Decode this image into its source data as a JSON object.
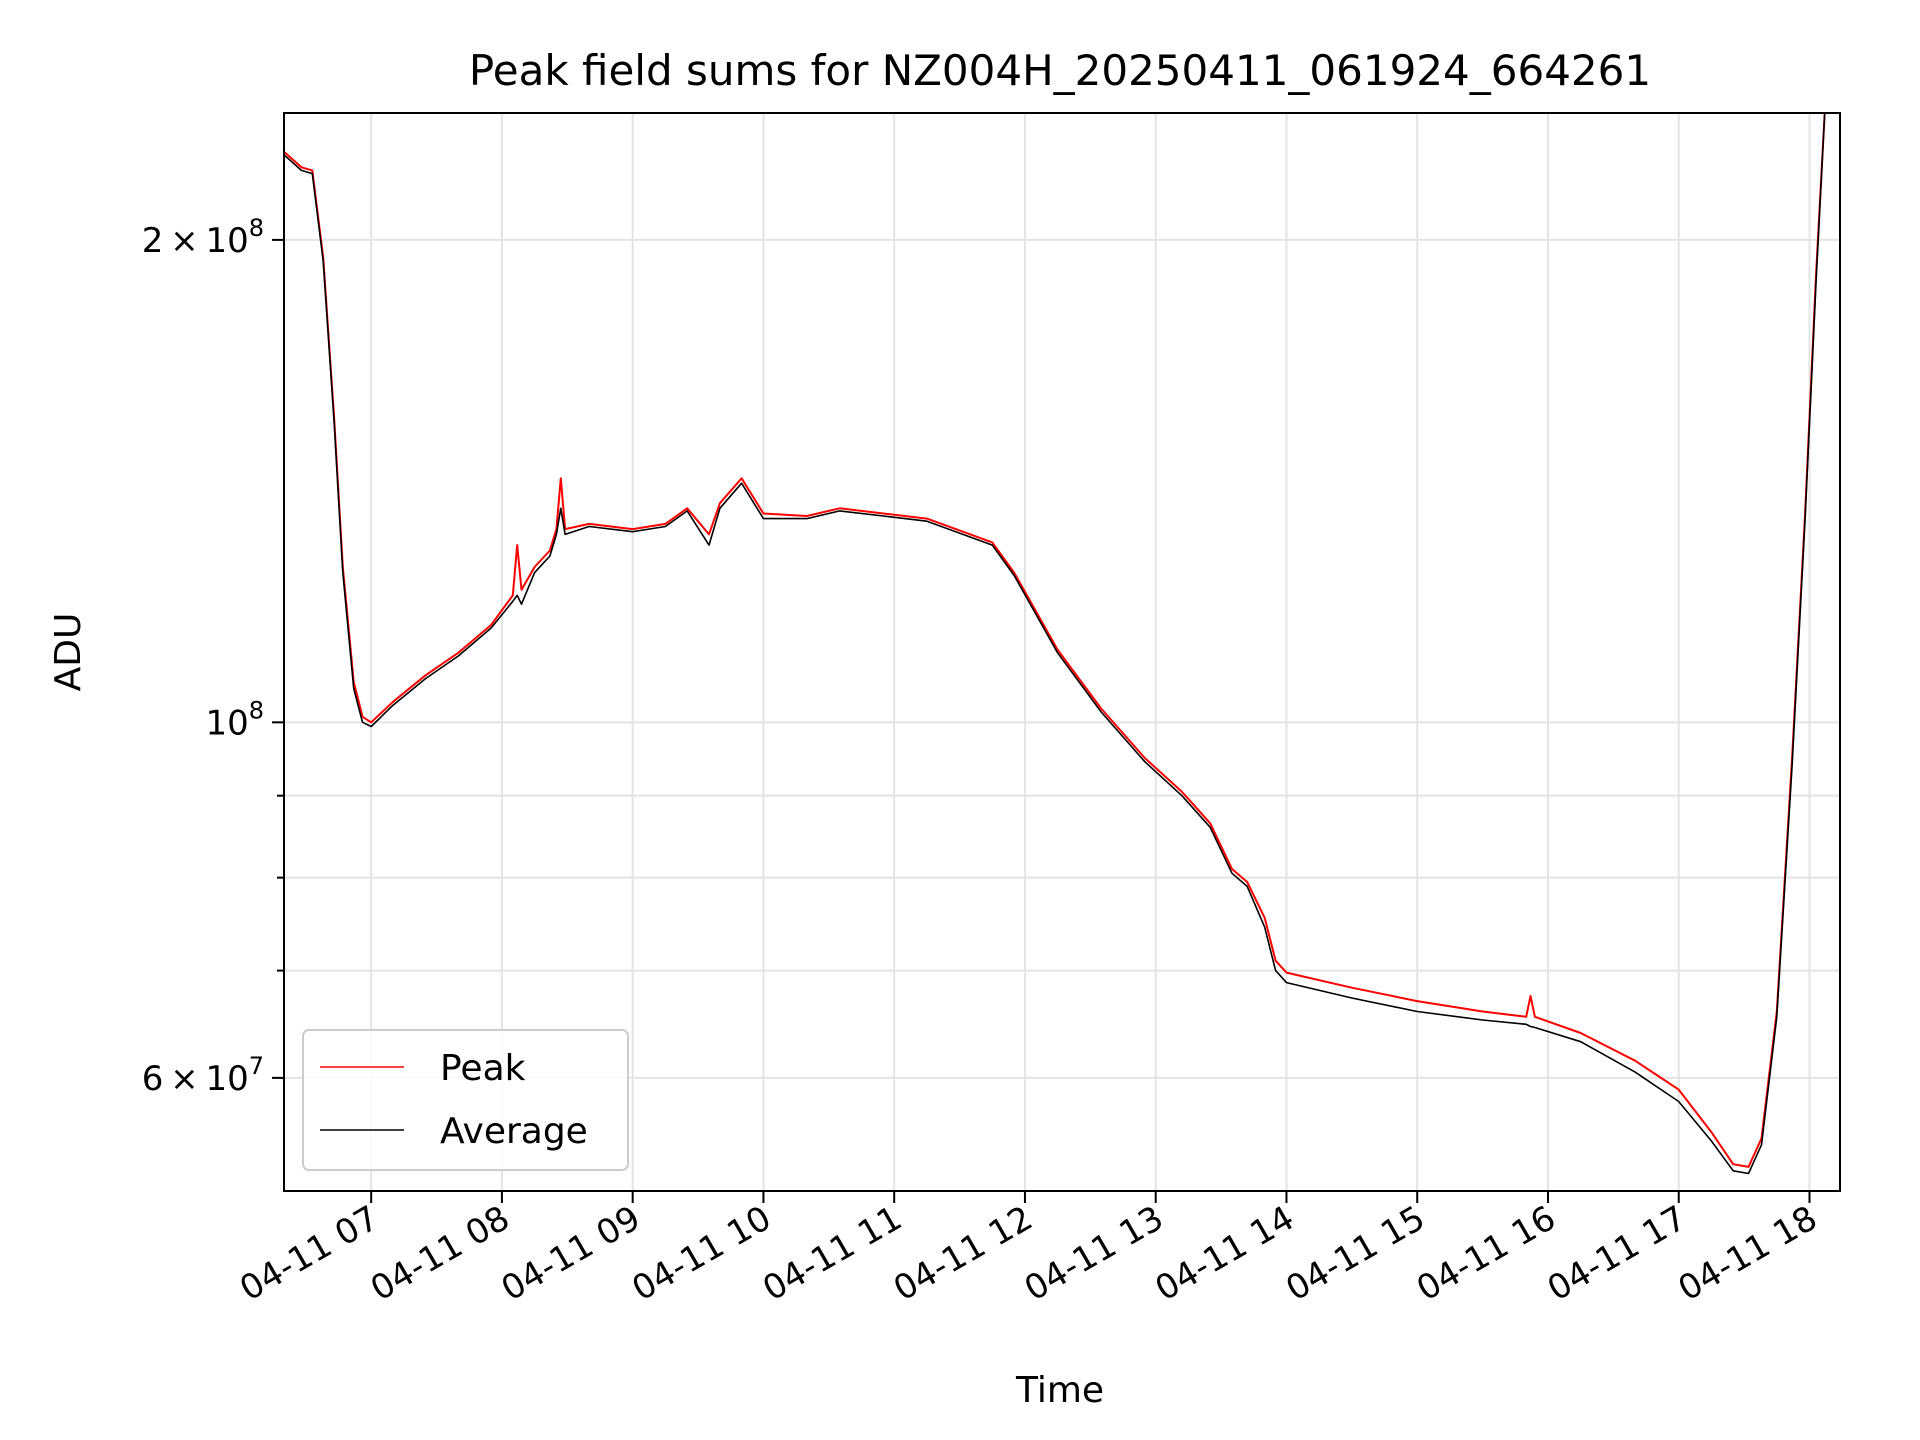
{
  "chart_data": {
    "type": "line",
    "title": "Peak field sums for NZ004H_20250411_061924_664261",
    "xlabel": "Time",
    "ylabel": "ADU",
    "xlim": [
      "04-11 06:20",
      "04-11 18:14"
    ],
    "ylim": [
      51000000,
      240000000
    ],
    "yscale": "log",
    "grid": true,
    "legend_position": "lower-left",
    "x_ticks": [
      "04-11 07",
      "04-11 08",
      "04-11 09",
      "04-11 10",
      "04-11 11",
      "04-11 12",
      "04-11 13",
      "04-11 14",
      "04-11 15",
      "04-11 16",
      "04-11 17",
      "04-11 18"
    ],
    "y_ticks": [
      {
        "value": 200000000,
        "label": "2 × 10⁸",
        "mantissa": "2",
        "exponent": "8"
      },
      {
        "value": 100000000,
        "label": "10⁸",
        "mantissa": "",
        "exponent": "8"
      },
      {
        "value": 60000000,
        "label": "6 × 10⁷",
        "mantissa": "6",
        "exponent": "7"
      }
    ],
    "y_minor_ticks": [
      70000000,
      80000000,
      90000000
    ],
    "series": [
      {
        "name": "Peak",
        "color": "#ff0000",
        "points": [
          [
            "04-11 06:20",
            227000000.0
          ],
          [
            "04-11 06:28",
            222000000.0
          ],
          [
            "04-11 06:33",
            221000000.0
          ],
          [
            "04-11 06:38",
            195000000.0
          ],
          [
            "04-11 06:43",
            155000000.0
          ],
          [
            "04-11 06:47",
            125000000.0
          ],
          [
            "04-11 06:52",
            106000000.0
          ],
          [
            "04-11 06:56",
            100800000.0
          ],
          [
            "04-11 07:00",
            100000000.0
          ],
          [
            "04-11 07:10",
            103000000.0
          ],
          [
            "04-11 07:25",
            107000000.0
          ],
          [
            "04-11 07:40",
            110500000.0
          ],
          [
            "04-11 07:55",
            115000000.0
          ],
          [
            "04-11 08:05",
            120000000.0
          ],
          [
            "04-11 08:07",
            129000000.0
          ],
          [
            "04-11 08:09",
            121000000.0
          ],
          [
            "04-11 08:15",
            125000000.0
          ],
          [
            "04-11 08:22",
            128000000.0
          ],
          [
            "04-11 08:25",
            132000000.0
          ],
          [
            "04-11 08:27",
            142000000.0
          ],
          [
            "04-11 08:29",
            132000000.0
          ],
          [
            "04-11 08:40",
            133000000.0
          ],
          [
            "04-11 09:00",
            132000000.0
          ],
          [
            "04-11 09:15",
            133000000.0
          ],
          [
            "04-11 09:25",
            136000000.0
          ],
          [
            "04-11 09:35",
            131000000.0
          ],
          [
            "04-11 09:40",
            137000000.0
          ],
          [
            "04-11 09:50",
            142000000.0
          ],
          [
            "04-11 10:00",
            135000000.0
          ],
          [
            "04-11 10:20",
            134500000.0
          ],
          [
            "04-11 10:35",
            136000000.0
          ],
          [
            "04-11 10:55",
            135000000.0
          ],
          [
            "04-11 11:15",
            134000000.0
          ],
          [
            "04-11 11:35",
            131000000.0
          ],
          [
            "04-11 11:45",
            129500000.0
          ],
          [
            "04-11 11:55",
            124000000.0
          ],
          [
            "04-11 12:15",
            111000000.0
          ],
          [
            "04-11 12:35",
            102000000.0
          ],
          [
            "04-11 12:55",
            95000000.0
          ],
          [
            "04-11 13:12",
            90500000.0
          ],
          [
            "04-11 13:25",
            86500000.0
          ],
          [
            "04-11 13:35",
            81000000.0
          ],
          [
            "04-11 13:42",
            79500000.0
          ],
          [
            "04-11 13:50",
            75500000.0
          ],
          [
            "04-11 13:55",
            71000000.0
          ],
          [
            "04-11 14:00",
            69800000.0
          ],
          [
            "04-11 14:30",
            68300000.0
          ],
          [
            "04-11 15:00",
            67000000.0
          ],
          [
            "04-11 15:30",
            66000000.0
          ],
          [
            "04-11 15:50",
            65500000.0
          ],
          [
            "04-11 15:52",
            67500000.0
          ],
          [
            "04-11 15:54",
            65500000.0
          ],
          [
            "04-11 16:15",
            64000000.0
          ],
          [
            "04-11 16:40",
            61500000.0
          ],
          [
            "04-11 17:00",
            59000000.0
          ],
          [
            "04-11 17:15",
            55500000.0
          ],
          [
            "04-11 17:25",
            53000000.0
          ],
          [
            "04-11 17:32",
            52800000.0
          ],
          [
            "04-11 17:38",
            55000000.0
          ],
          [
            "04-11 17:45",
            66000000.0
          ],
          [
            "04-11 17:52",
            95000000.0
          ],
          [
            "04-11 17:58",
            135000000.0
          ],
          [
            "04-11 18:03",
            190000000.0
          ],
          [
            "04-11 18:07",
            240000000.0
          ]
        ]
      },
      {
        "name": "Average",
        "color": "#000000",
        "points": [
          [
            "04-11 06:20",
            226000000.0
          ],
          [
            "04-11 06:28",
            221000000.0
          ],
          [
            "04-11 06:33",
            220000000.0
          ],
          [
            "04-11 06:38",
            194000000.0
          ],
          [
            "04-11 06:43",
            154000000.0
          ],
          [
            "04-11 06:47",
            124000000.0
          ],
          [
            "04-11 06:52",
            105000000.0
          ],
          [
            "04-11 06:56",
            100000000.0
          ],
          [
            "04-11 07:00",
            99400000.0
          ],
          [
            "04-11 07:10",
            102500000.0
          ],
          [
            "04-11 07:25",
            106500000.0
          ],
          [
            "04-11 07:40",
            110000000.0
          ],
          [
            "04-11 07:55",
            114500000.0
          ],
          [
            "04-11 08:05",
            119000000.0
          ],
          [
            "04-11 08:07",
            120000000.0
          ],
          [
            "04-11 08:09",
            118500000.0
          ],
          [
            "04-11 08:15",
            124000000.0
          ],
          [
            "04-11 08:22",
            127000000.0
          ],
          [
            "04-11 08:25",
            131000000.0
          ],
          [
            "04-11 08:27",
            136000000.0
          ],
          [
            "04-11 08:29",
            131000000.0
          ],
          [
            "04-11 08:40",
            132500000.0
          ],
          [
            "04-11 09:00",
            131500000.0
          ],
          [
            "04-11 09:15",
            132500000.0
          ],
          [
            "04-11 09:25",
            135500000.0
          ],
          [
            "04-11 09:35",
            129000000.0
          ],
          [
            "04-11 09:40",
            136000000.0
          ],
          [
            "04-11 09:50",
            141000000.0
          ],
          [
            "04-11 10:00",
            134000000.0
          ],
          [
            "04-11 10:20",
            134000000.0
          ],
          [
            "04-11 10:35",
            135500000.0
          ],
          [
            "04-11 10:55",
            134500000.0
          ],
          [
            "04-11 11:15",
            133500000.0
          ],
          [
            "04-11 11:35",
            130500000.0
          ],
          [
            "04-11 11:45",
            129000000.0
          ],
          [
            "04-11 11:55",
            123500000.0
          ],
          [
            "04-11 12:15",
            110500000.0
          ],
          [
            "04-11 12:35",
            101500000.0
          ],
          [
            "04-11 12:55",
            94500000.0
          ],
          [
            "04-11 13:12",
            90000000.0
          ],
          [
            "04-11 13:25",
            86000000.0
          ],
          [
            "04-11 13:35",
            80500000.0
          ],
          [
            "04-11 13:42",
            79000000.0
          ],
          [
            "04-11 13:50",
            74500000.0
          ],
          [
            "04-11 13:55",
            70000000.0
          ],
          [
            "04-11 14:00",
            68800000.0
          ],
          [
            "04-11 14:30",
            67300000.0
          ],
          [
            "04-11 15:00",
            66000000.0
          ],
          [
            "04-11 15:30",
            65200000.0
          ],
          [
            "04-11 15:50",
            64800000.0
          ],
          [
            "04-11 15:52",
            64600000.0
          ],
          [
            "04-11 15:54",
            64500000.0
          ],
          [
            "04-11 16:15",
            63200000.0
          ],
          [
            "04-11 16:40",
            60500000.0
          ],
          [
            "04-11 17:00",
            58000000.0
          ],
          [
            "04-11 17:15",
            54800000.0
          ],
          [
            "04-11 17:25",
            52500000.0
          ],
          [
            "04-11 17:32",
            52300000.0
          ],
          [
            "04-11 17:38",
            54500000.0
          ],
          [
            "04-11 17:45",
            65500000.0
          ],
          [
            "04-11 17:52",
            94000000.0
          ],
          [
            "04-11 17:58",
            134000000.0
          ],
          [
            "04-11 18:03",
            188000000.0
          ],
          [
            "04-11 18:07",
            240000000.0
          ]
        ]
      }
    ]
  }
}
